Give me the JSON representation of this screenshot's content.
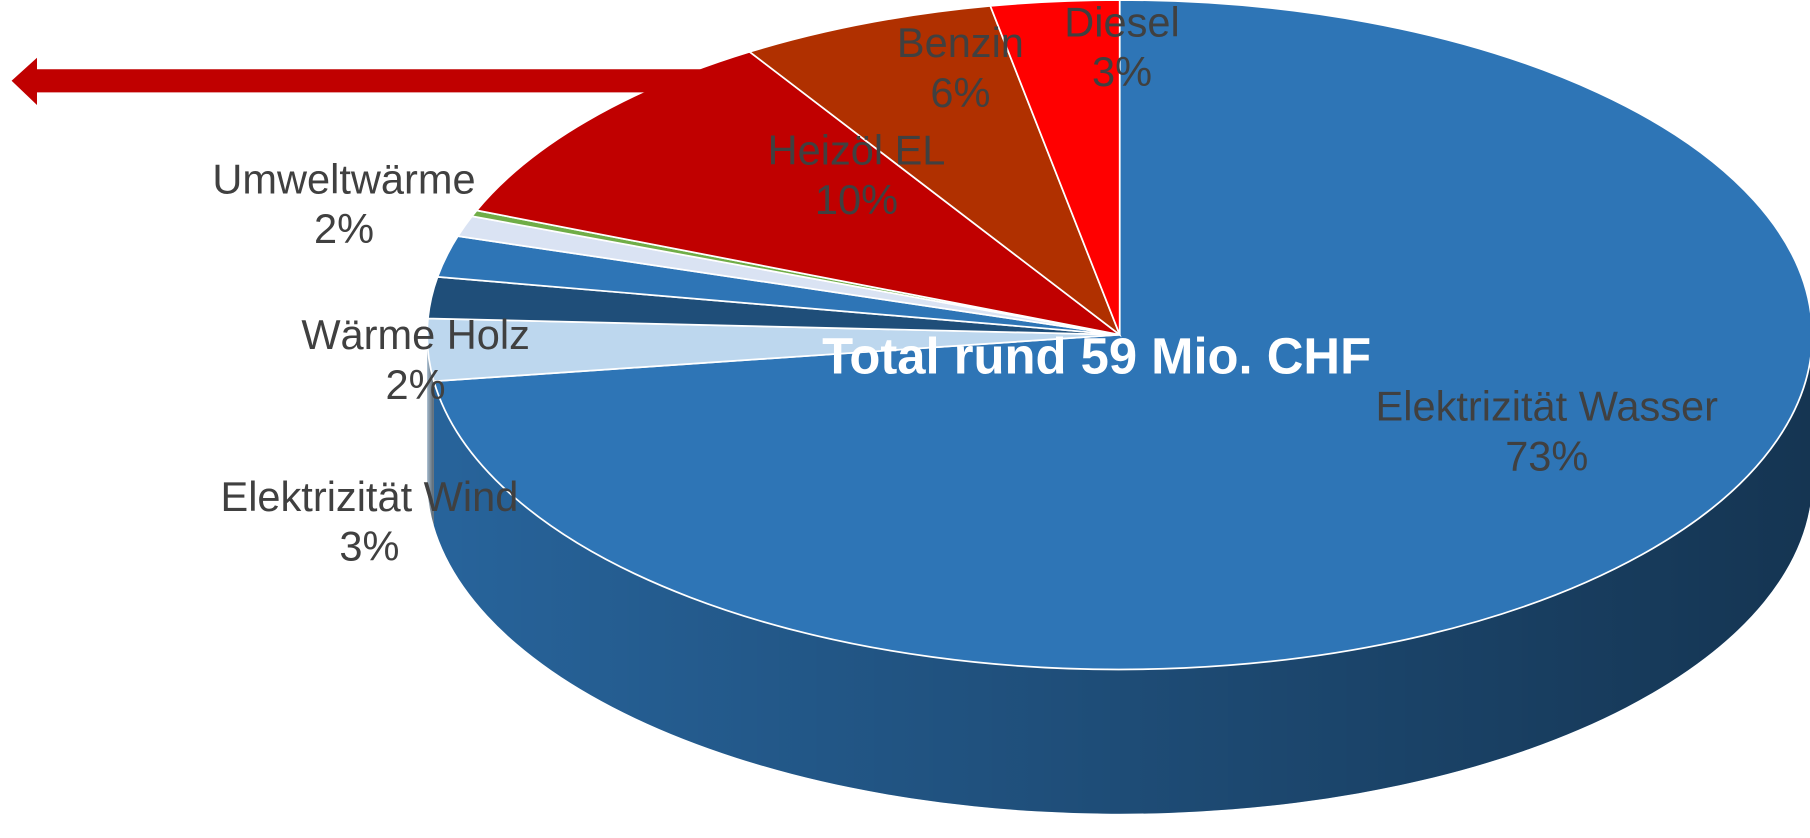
{
  "chart_data": {
    "type": "pie",
    "title": "Total rund 59 Mio. CHF",
    "categories": [
      "Elektrizität Wasser",
      "Elektrizität Wind",
      "Wärme Holz",
      "Umweltwärme",
      null,
      null,
      "Heizöl EL",
      "Benzin",
      "Diesel"
    ],
    "values": [
      73,
      3,
      2,
      2,
      1,
      0.3,
      10,
      6,
      3
    ],
    "value_labels": [
      "73%",
      "3%",
      "2%",
      "2%",
      null,
      null,
      "10%",
      "6%",
      "3%"
    ],
    "colors": [
      "#2e75b6",
      "#bdd7ee",
      "#1f4e79",
      "#2e75b6",
      "#dae3f3",
      "#70ad47",
      "#c00000",
      "#b03000",
      "#ff0000"
    ]
  }
}
